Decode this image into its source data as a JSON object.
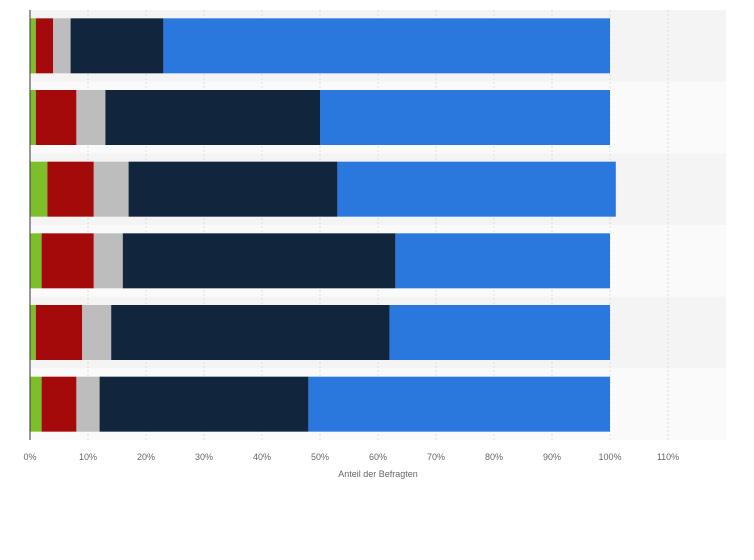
{
  "chart_data": {
    "type": "bar",
    "orientation": "horizontal",
    "stacked": true,
    "title": "",
    "xlabel": "Anteil der Befragten",
    "ylabel": "",
    "xlim": [
      0,
      120
    ],
    "x_ticks": [
      0,
      10,
      20,
      30,
      40,
      50,
      60,
      70,
      80,
      90,
      100,
      110
    ],
    "x_tick_labels": [
      "0%",
      "10%",
      "20%",
      "30%",
      "40%",
      "50%",
      "60%",
      "70%",
      "80%",
      "90%",
      "100%",
      "110%"
    ],
    "grid": true,
    "legend": "none",
    "categories": [
      "",
      "",
      "",
      "",
      "",
      ""
    ],
    "series": [
      {
        "color": "#7cbf2a",
        "values": [
          1,
          1,
          3,
          2,
          1,
          2
        ]
      },
      {
        "color": "#a50a0a",
        "values": [
          3,
          7,
          8,
          9,
          8,
          6
        ]
      },
      {
        "color": "#bdbdbd",
        "values": [
          3,
          5,
          6,
          5,
          5,
          4
        ]
      },
      {
        "color": "#11263d",
        "values": [
          16,
          37,
          36,
          47,
          48,
          36
        ]
      },
      {
        "color": "#2a78de",
        "values": [
          77,
          50,
          48,
          37,
          38,
          52
        ]
      }
    ]
  }
}
